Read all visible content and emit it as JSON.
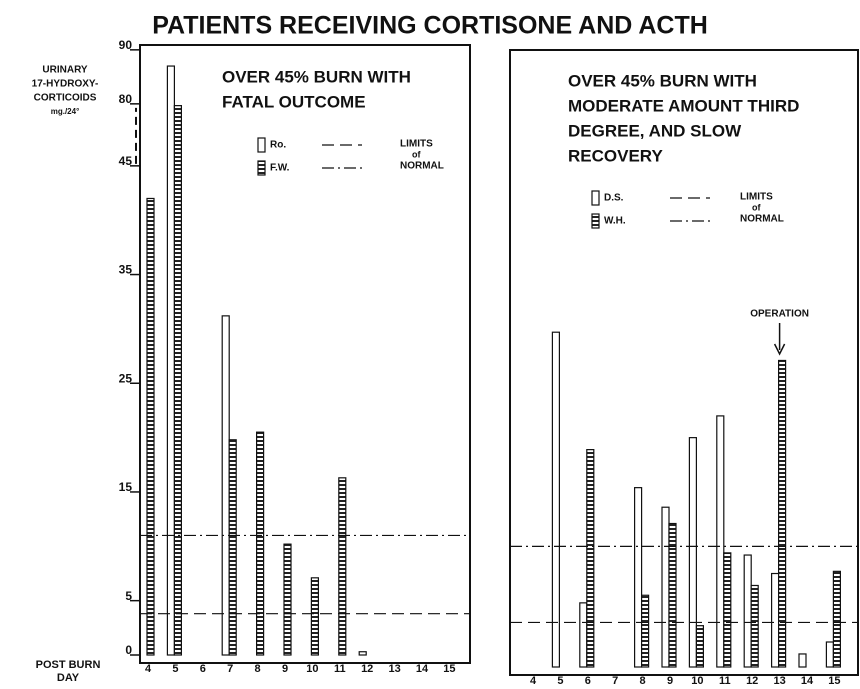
{
  "title": "PATIENTS RECEIVING CORTISONE AND ACTH",
  "chart_data": [
    {
      "type": "bar",
      "subtitle": [
        "OVER 45% BURN WITH",
        "FATAL OUTCOME"
      ],
      "ylabel": [
        "URINARY",
        "17-HYDROXY-",
        "CORTICOIDS",
        "mg./24°"
      ],
      "xlabel": [
        "POST BURN",
        "DAY"
      ],
      "categories": [
        "4",
        "5",
        "6",
        "7",
        "8",
        "9",
        "10",
        "11",
        "12",
        "13",
        "14",
        "15"
      ],
      "ylim": [
        0,
        90
      ],
      "ybreak": [
        45,
        80
      ],
      "yticks": [
        0,
        5,
        15,
        25,
        35,
        45,
        80,
        90
      ],
      "series": [
        {
          "name": "Ro.",
          "color": "#ffffff",
          "pattern": "open",
          "values": [
            null,
            87,
            null,
            31.2,
            null,
            null,
            null,
            null,
            0.3,
            null,
            null,
            null
          ]
        },
        {
          "name": "F.W.",
          "color": "#222222",
          "pattern": "hatched",
          "values": [
            42,
            79,
            null,
            19.8,
            20.5,
            10.2,
            7.1,
            16.3,
            null,
            null,
            null,
            null
          ]
        }
      ],
      "limits": {
        "label": [
          "LIMITS",
          "of",
          "NORMAL"
        ],
        "values": [
          3.8,
          11
        ]
      }
    },
    {
      "type": "bar",
      "subtitle": [
        "OVER 45% BURN WITH",
        "MODERATE AMOUNT THIRD",
        "DEGREE, AND SLOW",
        "RECOVERY"
      ],
      "categories": [
        "4",
        "5",
        "6",
        "7",
        "8",
        "9",
        "10",
        "11",
        "12",
        "13",
        "14",
        "15"
      ],
      "ylim": [
        0,
        90
      ],
      "ybreak": [
        45,
        80
      ],
      "series": [
        {
          "name": "D.S.",
          "color": "#ffffff",
          "pattern": "open",
          "values": [
            null,
            30.8,
            5.9,
            null,
            16.5,
            14.7,
            21.1,
            23.1,
            10.3,
            8.6,
            1.2,
            2.3
          ]
        },
        {
          "name": "W.H.",
          "color": "#222222",
          "pattern": "hatched",
          "values": [
            null,
            null,
            20,
            null,
            6.6,
            13.2,
            3.8,
            10.5,
            7.5,
            28.2,
            null,
            8.8
          ]
        }
      ],
      "limits": {
        "label": [
          "LIMITS",
          "of",
          "NORMAL"
        ],
        "values": [
          4.1,
          11.1
        ]
      },
      "annotation": {
        "text": "OPERATION",
        "category": 9
      }
    }
  ]
}
